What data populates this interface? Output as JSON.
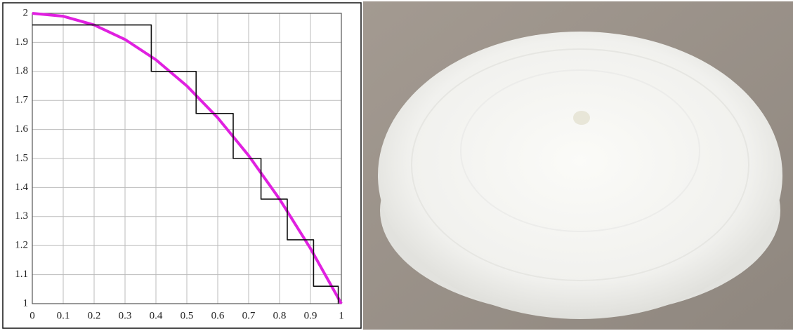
{
  "chart_data": {
    "type": "line",
    "xlim": [
      0,
      1
    ],
    "ylim": [
      1,
      2
    ],
    "xticks": [
      0,
      0.1,
      0.2,
      0.3,
      0.4,
      0.5,
      0.6,
      0.7,
      0.8,
      0.9,
      1
    ],
    "yticks": [
      1,
      1.1,
      1.2,
      1.3,
      1.4,
      1.5,
      1.6,
      1.7,
      1.8,
      1.9,
      2
    ],
    "grid": true,
    "series": [
      {
        "color": "#e020e0",
        "width": 4,
        "x": [
          0,
          0.1,
          0.2,
          0.3,
          0.4,
          0.5,
          0.6,
          0.7,
          0.8,
          0.9,
          1
        ],
        "values": [
          2,
          1.99,
          1.96,
          1.91,
          1.84,
          1.75,
          1.64,
          1.51,
          1.36,
          1.19,
          1.0
        ]
      },
      {
        "color": "#111111",
        "width": 1.6,
        "x": [
          0,
          0.385,
          0.385,
          0.53,
          0.53,
          0.65,
          0.65,
          0.74,
          0.74,
          0.825,
          0.825,
          0.91,
          0.91,
          0.99,
          0.99
        ],
        "values": [
          1.96,
          1.96,
          1.8,
          1.8,
          1.655,
          1.655,
          1.5,
          1.5,
          1.36,
          1.36,
          1.22,
          1.22,
          1.06,
          1.06,
          1.0
        ]
      }
    ]
  }
}
